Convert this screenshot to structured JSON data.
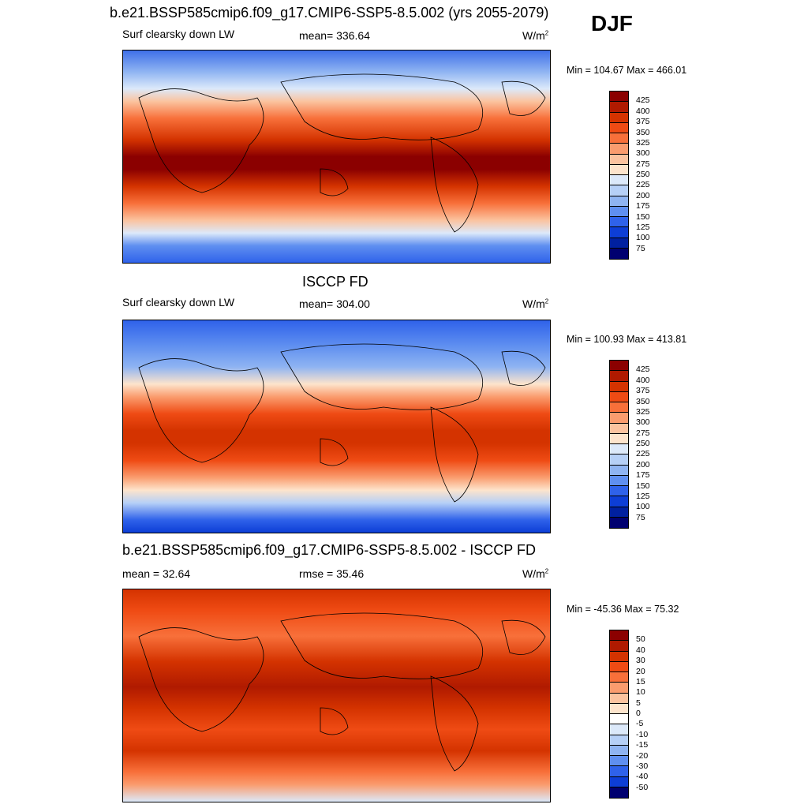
{
  "season": "DJF",
  "units_base": "W/m",
  "units_exp": "2",
  "panels": [
    {
      "title": "b.e21.BSSP585cmip6.f09_g17.CMIP6-SSP5-8.5.002 (yrs 2055-2079)",
      "left_label": "Surf clearsky down LW",
      "mean_label": "mean= 336.64",
      "minmax": "Min = 104.67 Max = 466.01"
    },
    {
      "title": "ISCCP FD",
      "left_label": "Surf clearsky down LW",
      "mean_label": "mean= 304.00",
      "minmax": "Min = 100.93 Max = 413.81"
    },
    {
      "title": "b.e21.BSSP585cmip6.f09_g17.CMIP6-SSP5-8.5.002 - ISCCP FD",
      "left_label": "mean =  32.64",
      "mean_label": "rmse =  35.46",
      "minmax": "Min = -45.36 Max =  75.32"
    }
  ],
  "chart_data": [
    {
      "type": "heatmap",
      "title": "b.e21.BSSP585cmip6.f09_g17.CMIP6-SSP5-8.5.002 (yrs 2055-2079)",
      "variable": "Surf clearsky down LW",
      "mean": 336.64,
      "min": 104.67,
      "max": 466.01,
      "colorbar_levels": [
        425,
        400,
        375,
        350,
        325,
        300,
        275,
        250,
        225,
        200,
        175,
        150,
        125,
        100,
        75
      ],
      "colorbar_colors": [
        "#8b0000",
        "#b01a00",
        "#d43300",
        "#ef4b14",
        "#f8703a",
        "#fa9c6e",
        "#fbc39f",
        "#fde4cc",
        "#dce9fa",
        "#b6d0f7",
        "#8fb4f2",
        "#5f8ff0",
        "#2f62ea",
        "#0d3ed6",
        "#0020a0",
        "#000070"
      ]
    },
    {
      "type": "heatmap",
      "title": "ISCCP FD",
      "variable": "Surf clearsky down LW",
      "mean": 304.0,
      "min": 100.93,
      "max": 413.81,
      "colorbar_levels": [
        425,
        400,
        375,
        350,
        325,
        300,
        275,
        250,
        225,
        200,
        175,
        150,
        125,
        100,
        75
      ],
      "colorbar_colors": [
        "#8b0000",
        "#b01a00",
        "#d43300",
        "#ef4b14",
        "#f8703a",
        "#fa9c6e",
        "#fbc39f",
        "#fde4cc",
        "#dce9fa",
        "#b6d0f7",
        "#8fb4f2",
        "#5f8ff0",
        "#2f62ea",
        "#0d3ed6",
        "#0020a0",
        "#000070"
      ]
    },
    {
      "type": "heatmap",
      "title": "b.e21.BSSP585cmip6.f09_g17.CMIP6-SSP5-8.5.002 - ISCCP FD",
      "mean": 32.64,
      "rmse": 35.46,
      "min": -45.36,
      "max": 75.32,
      "colorbar_levels": [
        50,
        40,
        30,
        20,
        15,
        10,
        5,
        0,
        -5,
        -10,
        -15,
        -20,
        -30,
        -40,
        -50
      ],
      "colorbar_colors": [
        "#8b0000",
        "#b01a00",
        "#d43300",
        "#ef4b14",
        "#f8703a",
        "#fa9c6e",
        "#fbc39f",
        "#fde4cc",
        "#ffffff",
        "#dce9fa",
        "#b6d0f7",
        "#8fb4f2",
        "#5f8ff0",
        "#2f62ea",
        "#0d3ed6",
        "#000070"
      ]
    }
  ]
}
